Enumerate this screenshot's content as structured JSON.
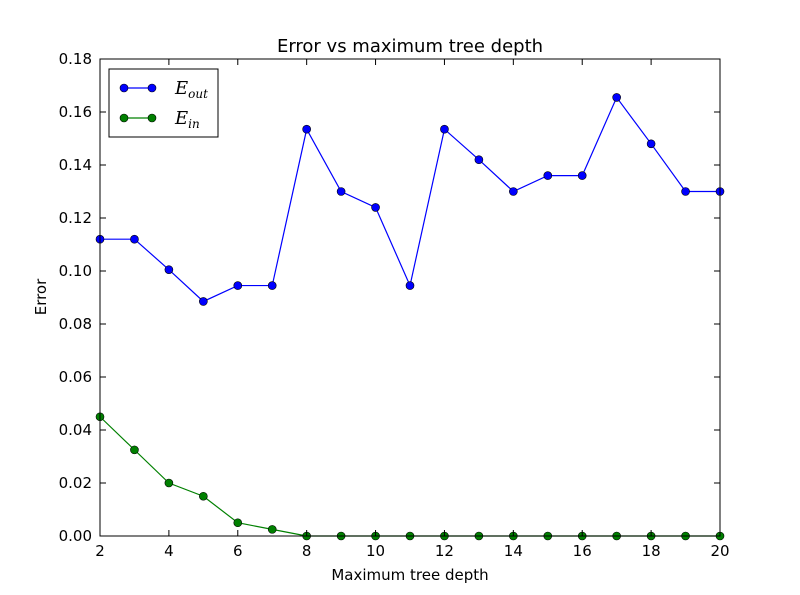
{
  "chart_data": {
    "type": "line",
    "title": "Error vs maximum tree depth",
    "xlabel": "Maximum tree depth",
    "ylabel": "Error",
    "xlim": [
      2,
      20
    ],
    "ylim": [
      0,
      0.18
    ],
    "xticks": [
      "2",
      "4",
      "6",
      "8",
      "10",
      "12",
      "14",
      "16",
      "18",
      "20"
    ],
    "yticks": [
      "0.00",
      "0.02",
      "0.04",
      "0.06",
      "0.08",
      "0.10",
      "0.12",
      "0.14",
      "0.16",
      "0.18"
    ],
    "x": [
      2,
      3,
      4,
      5,
      6,
      7,
      8,
      9,
      10,
      11,
      12,
      13,
      14,
      15,
      16,
      17,
      18,
      19,
      20
    ],
    "grid": false,
    "legend_position": "top-left",
    "series": [
      {
        "name": "E_out",
        "legend_main": "E",
        "legend_sub": "out",
        "color": "#0000ff",
        "marker": "circle",
        "values": [
          0.112,
          0.112,
          0.1005,
          0.0885,
          0.0945,
          0.0945,
          0.1535,
          0.13,
          0.124,
          0.0945,
          0.1535,
          0.142,
          0.13,
          0.136,
          0.136,
          0.1655,
          0.148,
          0.13,
          0.13
        ]
      },
      {
        "name": "E_in",
        "legend_main": "E",
        "legend_sub": "in",
        "color": "#008000",
        "marker": "circle",
        "values": [
          0.045,
          0.0325,
          0.02,
          0.015,
          0.005,
          0.0025,
          0.0,
          0.0,
          0.0,
          0.0,
          0.0,
          0.0,
          0.0,
          0.0,
          0.0,
          0.0,
          0.0,
          0.0,
          0.0
        ]
      }
    ]
  }
}
